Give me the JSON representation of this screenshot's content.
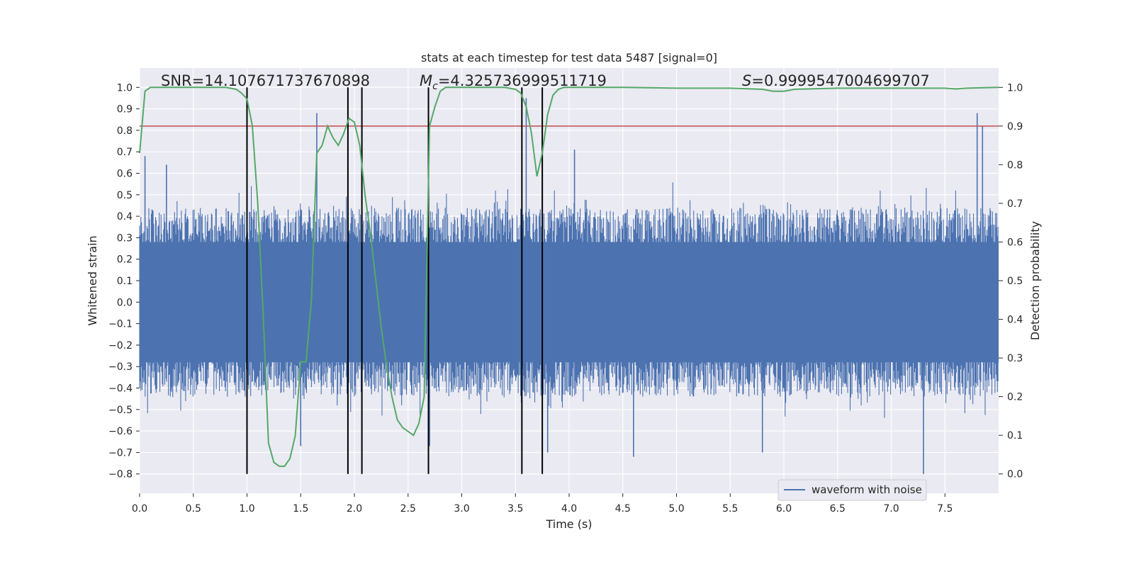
{
  "chart_data": {
    "type": "line",
    "title": "stats at each timestep for test data 5487 [signal=0]",
    "xlabel": "Time (s)",
    "ylabel_left": "Whitened strain",
    "ylabel_right": "Detection probability",
    "xlim": [
      0.0,
      8.0
    ],
    "ylim_left": [
      -0.89,
      1.09
    ],
    "ylim_right": [
      -0.05,
      1.05
    ],
    "x_ticks": [
      "0.0",
      "0.5",
      "1.0",
      "1.5",
      "2.0",
      "2.5",
      "3.0",
      "3.5",
      "4.0",
      "4.5",
      "5.0",
      "5.5",
      "6.0",
      "6.5",
      "7.0",
      "7.5"
    ],
    "y_left_ticks": [
      "1.0",
      "0.9",
      "0.8",
      "0.7",
      "0.6",
      "0.5",
      "0.4",
      "0.3",
      "0.2",
      "0.1",
      "0.0",
      "−0.1",
      "−0.2",
      "−0.3",
      "−0.4",
      "−0.5",
      "−0.6",
      "−0.7",
      "−0.8"
    ],
    "y_right_ticks": [
      "1.0",
      "0.9",
      "0.8",
      "0.7",
      "0.6",
      "0.5",
      "0.4",
      "0.3",
      "0.2",
      "0.1",
      "0.0"
    ],
    "stats": {
      "snr": "SNR=14.107671737670898",
      "mc_symbol": "M",
      "mc_sub": "c",
      "mc_value": "=4.325736999511719",
      "s_symbol": "S",
      "s_value": "=0.9999547004699707"
    },
    "threshold": 0.82,
    "vertical_lines": [
      1.0,
      1.94,
      2.07,
      2.69,
      3.56,
      3.75
    ],
    "series": [
      {
        "name": "waveform with noise",
        "color": "#4c72b0",
        "axis": "left",
        "noise_core": 0.28,
        "noise_envelope": 0.44,
        "spikes": [
          {
            "x": 0.05,
            "y": 0.68
          },
          {
            "x": 0.25,
            "y": 0.64
          },
          {
            "x": 1.65,
            "y": 0.88
          },
          {
            "x": 3.6,
            "y": 0.95
          },
          {
            "x": 4.05,
            "y": 0.71
          },
          {
            "x": 7.8,
            "y": 0.88
          },
          {
            "x": 7.85,
            "y": 0.82
          },
          {
            "x": 7.3,
            "y": -0.8
          },
          {
            "x": 1.5,
            "y": -0.67
          },
          {
            "x": 2.7,
            "y": -0.67
          },
          {
            "x": 3.8,
            "y": -0.7
          },
          {
            "x": 4.6,
            "y": -0.72
          },
          {
            "x": 5.8,
            "y": -0.7
          }
        ]
      },
      {
        "name": "detection probability",
        "color": "#55a868",
        "axis": "right",
        "x": [
          0.0,
          0.05,
          0.1,
          0.2,
          0.5,
          0.8,
          0.9,
          0.95,
          1.0,
          1.05,
          1.1,
          1.15,
          1.2,
          1.25,
          1.3,
          1.35,
          1.4,
          1.45,
          1.5,
          1.55,
          1.6,
          1.65,
          1.7,
          1.75,
          1.8,
          1.85,
          1.9,
          1.95,
          2.0,
          2.05,
          2.1,
          2.15,
          2.2,
          2.25,
          2.3,
          2.35,
          2.4,
          2.45,
          2.5,
          2.55,
          2.6,
          2.65,
          2.7,
          2.75,
          2.8,
          2.85,
          3.0,
          3.2,
          3.4,
          3.5,
          3.55,
          3.6,
          3.65,
          3.7,
          3.75,
          3.8,
          3.85,
          3.9,
          3.95,
          4.0,
          4.5,
          5.0,
          5.5,
          5.8,
          5.9,
          6.0,
          6.1,
          6.5,
          7.0,
          7.5,
          7.6,
          7.7,
          8.0
        ],
        "values": [
          0.83,
          0.99,
          1.0,
          1.0,
          1.0,
          1.0,
          0.995,
          0.985,
          0.97,
          0.9,
          0.7,
          0.42,
          0.08,
          0.03,
          0.02,
          0.02,
          0.04,
          0.1,
          0.29,
          0.29,
          0.45,
          0.83,
          0.85,
          0.9,
          0.87,
          0.85,
          0.88,
          0.92,
          0.91,
          0.85,
          0.72,
          0.62,
          0.5,
          0.38,
          0.28,
          0.2,
          0.14,
          0.12,
          0.11,
          0.1,
          0.13,
          0.2,
          0.9,
          0.95,
          0.99,
          1.0,
          1.0,
          1.0,
          1.0,
          0.995,
          0.985,
          0.95,
          0.88,
          0.77,
          0.83,
          0.93,
          0.98,
          0.995,
          1.0,
          1.0,
          1.0,
          0.998,
          0.998,
          0.995,
          0.99,
          0.99,
          0.995,
          0.998,
          0.998,
          0.998,
          0.996,
          0.998,
          1.0
        ]
      },
      {
        "name": "threshold",
        "color": "#c44e52",
        "axis": "left"
      }
    ],
    "legend": {
      "position": "bottom-right",
      "entries": [
        "waveform with noise"
      ]
    }
  }
}
